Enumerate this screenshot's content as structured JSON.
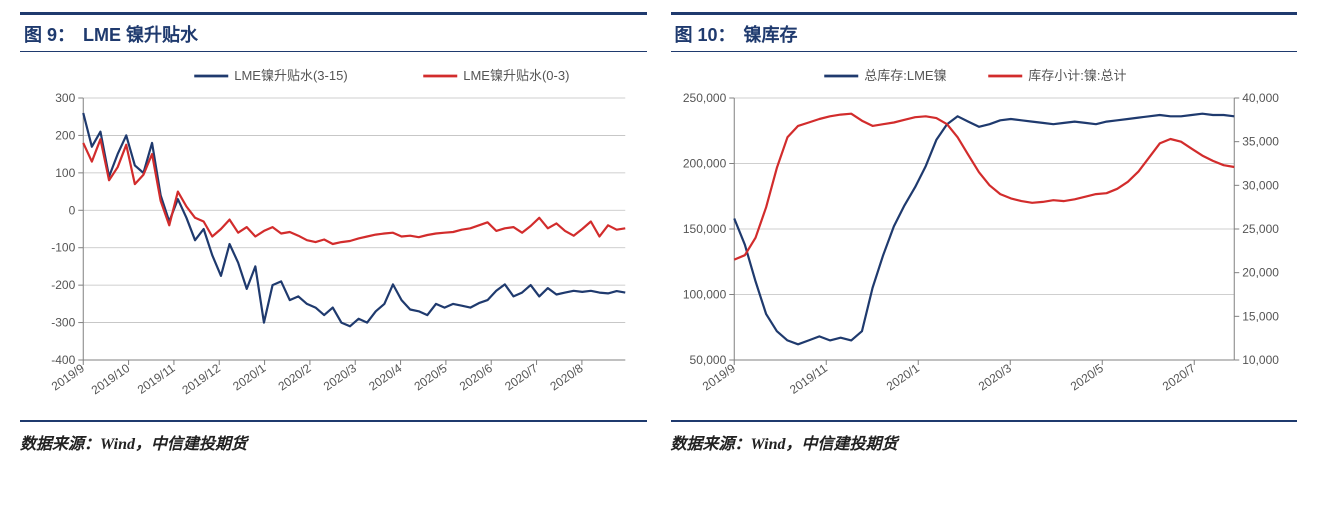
{
  "panels": [
    {
      "title_prefix": "图 9：",
      "title": "LME 镍升贴水",
      "source": "数据来源：Wind，中信建投期货",
      "chart": {
        "type": "line",
        "legend_position": "top",
        "background_color": "#ffffff",
        "grid_color": "#bfbfbf",
        "axis_color": "#808080",
        "tick_fontsize": 12,
        "xlabels": [
          "2019/9",
          "2019/10",
          "2019/11",
          "2019/12",
          "2020/1",
          "2020/2",
          "2020/3",
          "2020/4",
          "2020/5",
          "2020/6",
          "2020/7",
          "2020/8"
        ],
        "ylim": [
          -400,
          300
        ],
        "ytick_step": 100,
        "line_width": 2.2,
        "series": [
          {
            "name": "LME镍升贴水(3-15)",
            "color": "#1f3a6e",
            "values": [
              260,
              170,
              210,
              90,
              150,
              200,
              120,
              100,
              180,
              40,
              -30,
              30,
              -20,
              -80,
              -50,
              -120,
              -175,
              -90,
              -140,
              -210,
              -150,
              -300,
              -200,
              -190,
              -240,
              -230,
              -250,
              -260,
              -280,
              -260,
              -300,
              -310,
              -290,
              -300,
              -270,
              -250,
              -198,
              -240,
              -265,
              -270,
              -280,
              -250,
              -260,
              -250,
              -255,
              -260,
              -248,
              -240,
              -215,
              -198,
              -230,
              -220,
              -200,
              -230,
              -208,
              -225,
              -220,
              -215,
              -218,
              -215,
              -220,
              -222,
              -216,
              -220
            ]
          },
          {
            "name": "LME镍升贴水(0-3)",
            "color": "#d22c2c",
            "values": [
              180,
              130,
              190,
              80,
              115,
              175,
              70,
              95,
              150,
              25,
              -40,
              50,
              10,
              -20,
              -30,
              -70,
              -50,
              -25,
              -60,
              -45,
              -70,
              -55,
              -45,
              -62,
              -58,
              -68,
              -80,
              -85,
              -78,
              -90,
              -85,
              -82,
              -75,
              -70,
              -65,
              -62,
              -60,
              -70,
              -68,
              -72,
              -66,
              -62,
              -60,
              -58,
              -52,
              -48,
              -40,
              -32,
              -55,
              -48,
              -45,
              -60,
              -42,
              -20,
              -48,
              -35,
              -55,
              -68,
              -50,
              -30,
              -70,
              -40,
              -52,
              -48
            ]
          }
        ]
      }
    },
    {
      "title_prefix": "图 10：",
      "title": "镍库存",
      "source": "数据来源：Wind，中信建投期货",
      "chart": {
        "type": "line-dual-axis",
        "legend_position": "top",
        "background_color": "#ffffff",
        "grid_color": "#bfbfbf",
        "axis_color": "#808080",
        "tick_fontsize": 12,
        "xlabels": [
          "2019/9",
          "2019/11",
          "2020/1",
          "2020/3",
          "2020/5",
          "2020/7"
        ],
        "y_left": {
          "lim": [
            50000,
            250000
          ],
          "tick_step": 50000
        },
        "y_right": {
          "lim": [
            10000,
            40000
          ],
          "tick_step": 5000
        },
        "line_width": 2.2,
        "series": [
          {
            "name": "总库存:LME镍",
            "axis": "left",
            "color": "#1f3a6e",
            "values": [
              158000,
              138000,
              110000,
              85000,
              72000,
              65000,
              62000,
              65000,
              68000,
              65000,
              67000,
              65000,
              72000,
              105000,
              130000,
              152000,
              168000,
              182000,
              198000,
              218000,
              230000,
              236000,
              232000,
              228000,
              230000,
              233000,
              234000,
              233000,
              232000,
              231000,
              230000,
              231000,
              232000,
              231000,
              230000,
              232000,
              233000,
              234000,
              235000,
              236000,
              237000,
              236000,
              236000,
              237000,
              238000,
              237000,
              237000,
              236000
            ]
          },
          {
            "name": "库存小计:镍:总计",
            "axis": "right",
            "color": "#d22c2c",
            "values": [
              21500,
              22000,
              24000,
              27500,
              32000,
              35500,
              36800,
              37200,
              37600,
              37900,
              38100,
              38200,
              37400,
              36800,
              37000,
              37200,
              37500,
              37800,
              37900,
              37700,
              37000,
              35500,
              33500,
              31500,
              30000,
              29000,
              28500,
              28200,
              28000,
              28100,
              28300,
              28200,
              28400,
              28700,
              29000,
              29100,
              29600,
              30400,
              31600,
              33200,
              34800,
              35300,
              35000,
              34200,
              33400,
              32800,
              32300,
              32100
            ]
          }
        ]
      }
    }
  ]
}
